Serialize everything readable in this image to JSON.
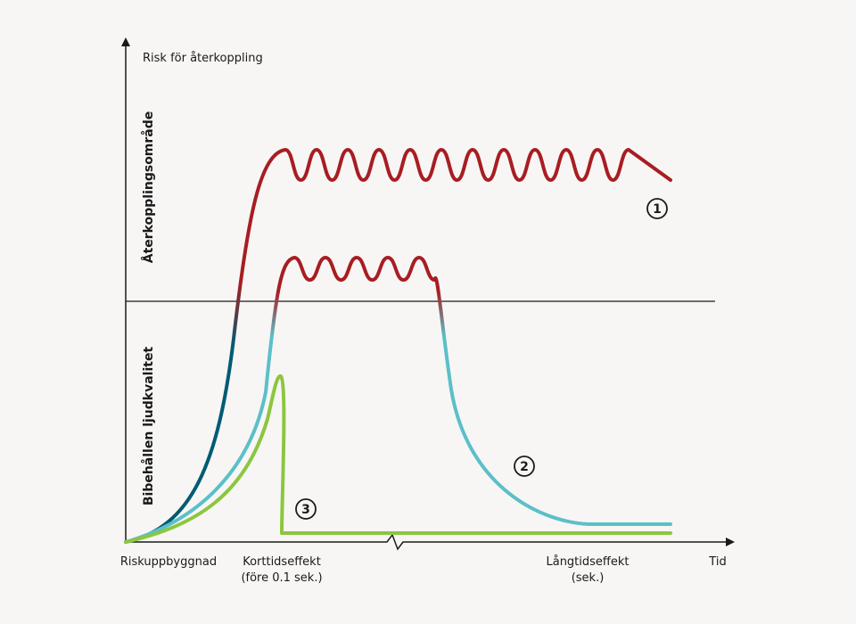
{
  "chart_data": {
    "type": "line",
    "ylabel": "Risk för återkoppling",
    "xlabel": "Tid",
    "regions": {
      "upper": "Återkopplingsområde",
      "lower": "Bibehållen ljudkvalitet"
    },
    "x_ticks": [
      {
        "label": "Riskuppbyggnad",
        "label2": ""
      },
      {
        "label": "Korttidseffekt",
        "label2": "(före 0.1 sek.)"
      },
      {
        "label": "Långtidseffekt",
        "label2": "(sek.)"
      }
    ],
    "series": [
      {
        "name": "1",
        "color_high": "#a81d22",
        "color_low": "#005b73"
      },
      {
        "name": "2",
        "color_high": "#a81d22",
        "color_low": "#5cbfc8"
      },
      {
        "name": "3",
        "color": "#8cc63f"
      }
    ],
    "grid": false
  }
}
